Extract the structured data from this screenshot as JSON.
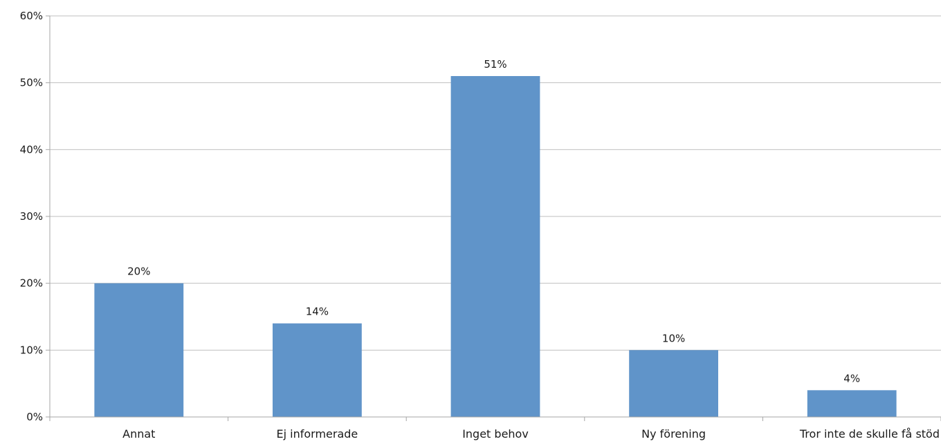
{
  "chart_data": {
    "type": "bar",
    "title": "",
    "xlabel": "",
    "ylabel": "",
    "categories": [
      "Annat",
      "Ej informerade",
      "Inget behov",
      "Ny förening",
      "Tror inte de skulle få stöd"
    ],
    "values": [
      20,
      14,
      51,
      10,
      4
    ],
    "value_labels": [
      "20%",
      "14%",
      "51%",
      "10%",
      "4%"
    ],
    "ylim": [
      0,
      60
    ],
    "yticks": [
      0,
      10,
      20,
      30,
      40,
      50,
      60
    ],
    "ytick_labels": [
      "0%",
      "10%",
      "20%",
      "30%",
      "40%",
      "50%",
      "60%"
    ],
    "grid": true,
    "legend": "none",
    "colors": {
      "bar": "#6094c9",
      "grid": "#bfbfbf",
      "axis": "#a6a6a6",
      "text": "#1a1a1a"
    }
  }
}
